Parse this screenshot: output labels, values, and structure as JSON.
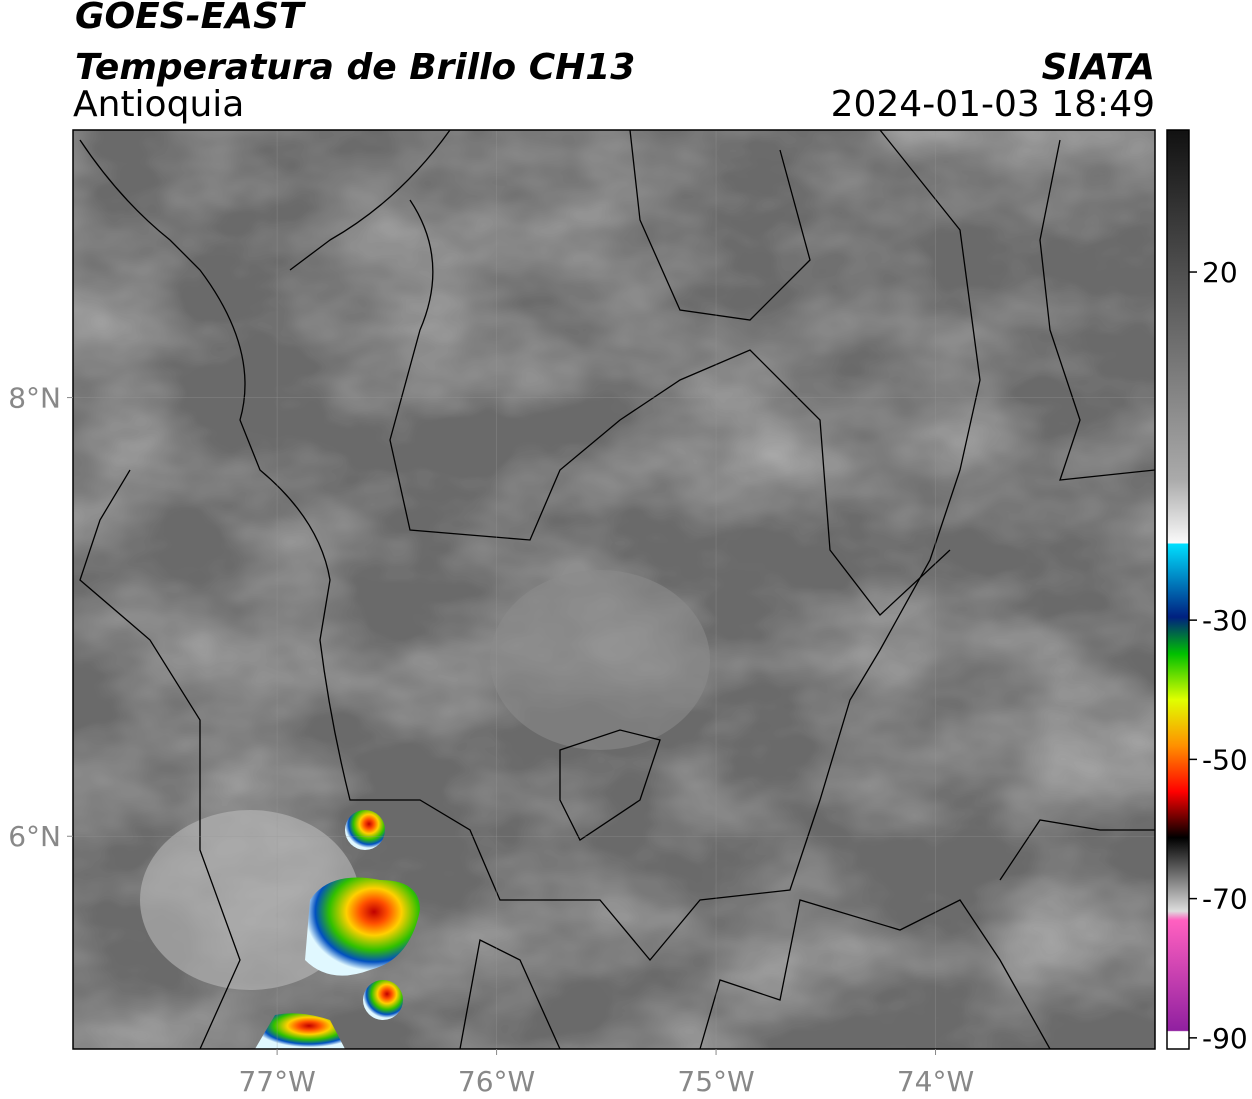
{
  "header": {
    "title": "GOES-EAST",
    "subtitle": "Temperatura de Brillo CH13",
    "region": "Antioquia",
    "source": "SIATA",
    "datetime": "2024-01-03 18:49"
  },
  "map": {
    "lon_range": [
      -77.93,
      -73.0
    ],
    "lat_range": [
      5.03,
      9.22
    ],
    "lon_ticks": [
      {
        "value": -77,
        "label": "77°W"
      },
      {
        "value": -76,
        "label": "76°W"
      },
      {
        "value": -75,
        "label": "75°W"
      },
      {
        "value": -74,
        "label": "74°W"
      }
    ],
    "lat_ticks": [
      {
        "value": 8,
        "label": "8°N"
      },
      {
        "value": 6,
        "label": "6°N"
      }
    ]
  },
  "colorbar": {
    "range": [
      -91.6,
      40.4
    ],
    "ticks": [
      20,
      -30,
      -50,
      -70,
      -90
    ]
  }
}
